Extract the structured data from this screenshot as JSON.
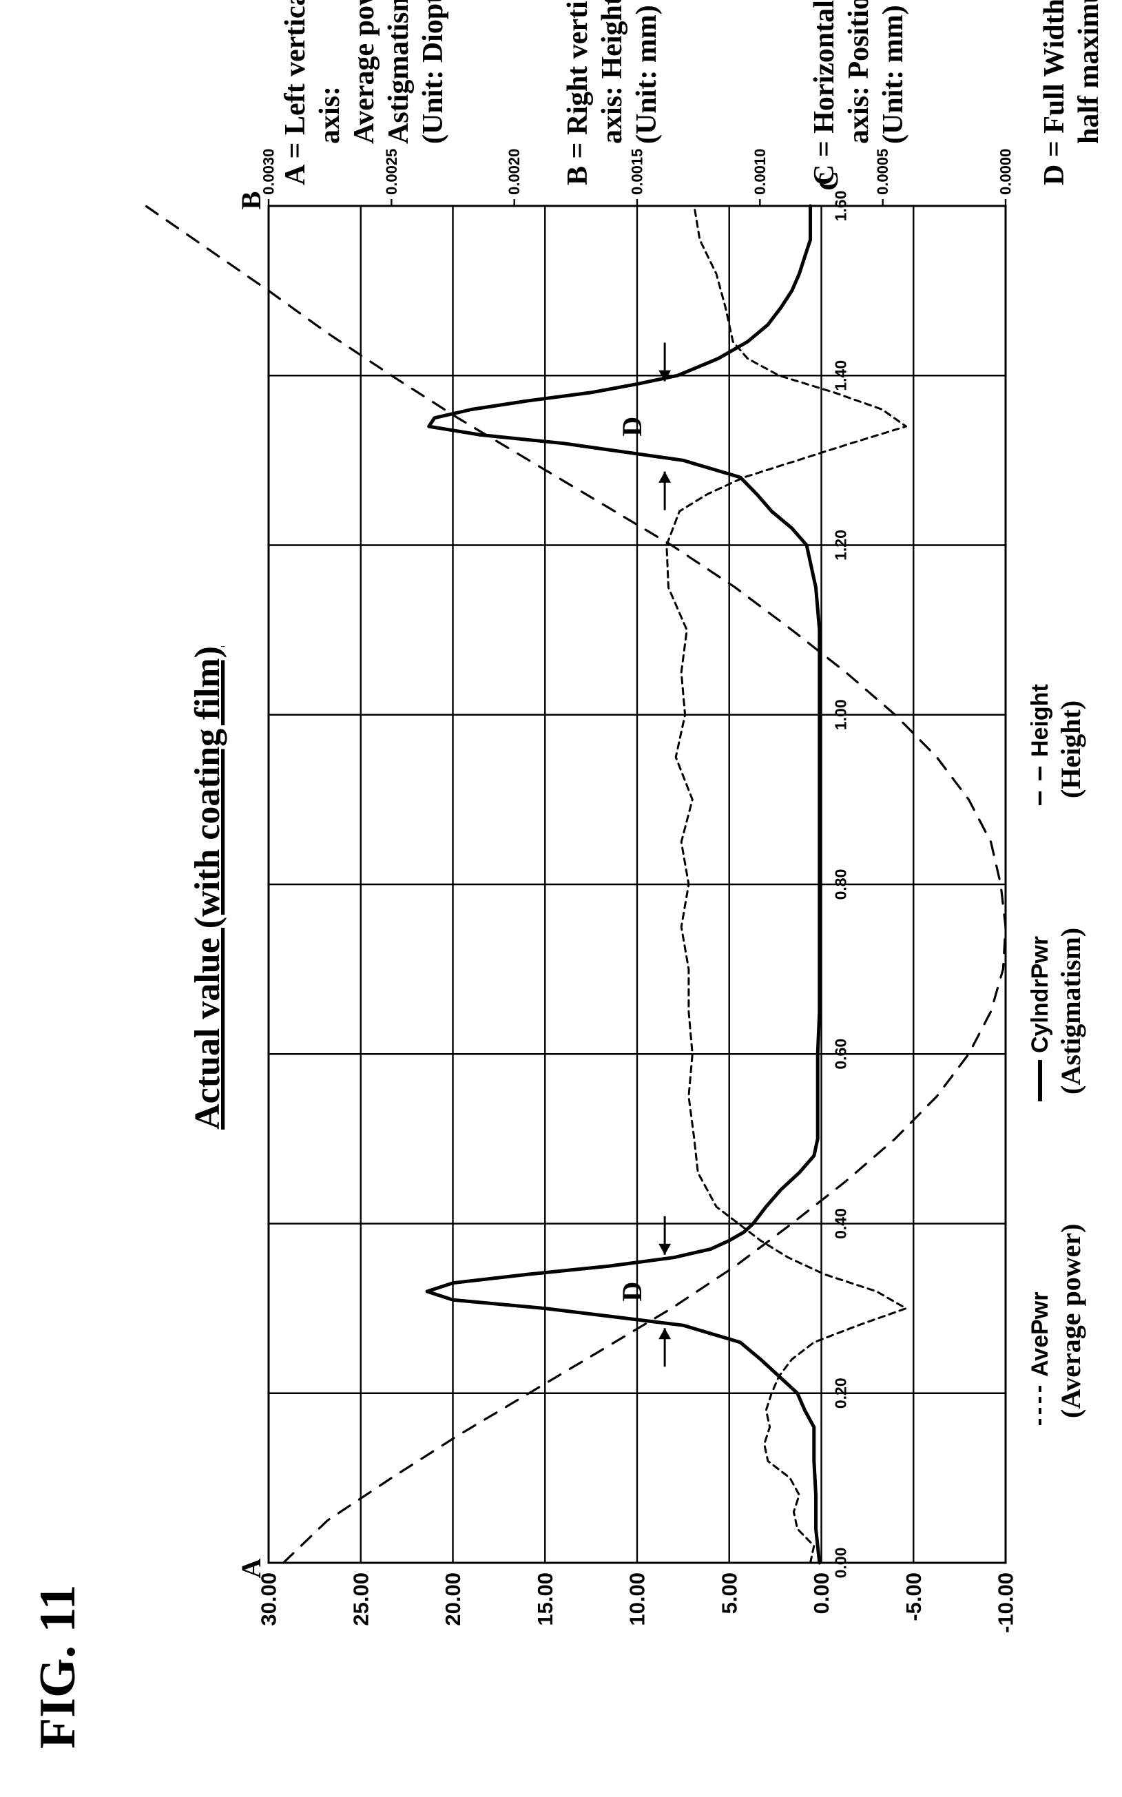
{
  "figure": {
    "label": "FIG. 11"
  },
  "chart_data": {
    "type": "line",
    "title": "Actual value (with coating film)",
    "x_axis": {
      "marker": "C",
      "range": [
        0,
        1.6
      ],
      "ticks": [
        "0.00",
        "0.20",
        "0.40",
        "0.60",
        "0.80",
        "1.00",
        "1.20",
        "1.40",
        "1.60"
      ]
    },
    "left_axis": {
      "marker": "A",
      "range": [
        -10,
        30
      ],
      "ticks": [
        "-10.00",
        "-5.00",
        "0.00",
        "5.00",
        "10.00",
        "15.00",
        "20.00",
        "25.00",
        "30.00"
      ]
    },
    "right_axis": {
      "marker": "B",
      "range": [
        0,
        0.003
      ],
      "ticks": [
        "0.0000",
        "0.0005",
        "0.0010",
        "0.0015",
        "0.0020",
        "0.0025",
        "0.0030"
      ]
    },
    "series": [
      {
        "name": "AvePwr",
        "legend_sub": "(Average power)",
        "axis": "left",
        "style": "dashed-short",
        "points": [
          [
            0.0,
            0.6
          ],
          [
            0.02,
            0.4
          ],
          [
            0.04,
            1.3
          ],
          [
            0.06,
            1.5
          ],
          [
            0.08,
            1.2
          ],
          [
            0.1,
            1.7
          ],
          [
            0.12,
            2.9
          ],
          [
            0.14,
            3.1
          ],
          [
            0.16,
            2.8
          ],
          [
            0.18,
            3.0
          ],
          [
            0.2,
            2.7
          ],
          [
            0.22,
            2.3
          ],
          [
            0.24,
            1.6
          ],
          [
            0.26,
            0.4
          ],
          [
            0.28,
            -2.0
          ],
          [
            0.3,
            -4.6
          ],
          [
            0.32,
            -3.0
          ],
          [
            0.34,
            -0.2
          ],
          [
            0.36,
            1.8
          ],
          [
            0.38,
            3.3
          ],
          [
            0.4,
            4.5
          ],
          [
            0.42,
            5.7
          ],
          [
            0.44,
            6.2
          ],
          [
            0.46,
            6.7
          ],
          [
            0.5,
            6.9
          ],
          [
            0.55,
            7.2
          ],
          [
            0.6,
            7.0
          ],
          [
            0.65,
            7.2
          ],
          [
            0.7,
            7.2
          ],
          [
            0.75,
            7.6
          ],
          [
            0.8,
            7.2
          ],
          [
            0.85,
            7.6
          ],
          [
            0.9,
            7.0
          ],
          [
            0.95,
            7.9
          ],
          [
            1.0,
            7.4
          ],
          [
            1.05,
            7.6
          ],
          [
            1.1,
            7.3
          ],
          [
            1.15,
            8.3
          ],
          [
            1.2,
            8.4
          ],
          [
            1.24,
            7.7
          ],
          [
            1.26,
            6.2
          ],
          [
            1.28,
            4.2
          ],
          [
            1.3,
            1.3
          ],
          [
            1.32,
            -1.6
          ],
          [
            1.34,
            -4.6
          ],
          [
            1.36,
            -3.3
          ],
          [
            1.38,
            -0.7
          ],
          [
            1.4,
            2.3
          ],
          [
            1.42,
            4.0
          ],
          [
            1.44,
            4.8
          ],
          [
            1.48,
            5.2
          ],
          [
            1.52,
            5.7
          ],
          [
            1.56,
            6.6
          ],
          [
            1.6,
            6.9
          ]
        ]
      },
      {
        "name": "CylndrPwr",
        "legend_sub": "(Astigmatism)",
        "axis": "left",
        "style": "solid",
        "points": [
          [
            0.0,
            0.1
          ],
          [
            0.04,
            0.3
          ],
          [
            0.08,
            0.3
          ],
          [
            0.12,
            0.4
          ],
          [
            0.16,
            0.4
          ],
          [
            0.18,
            0.9
          ],
          [
            0.2,
            1.3
          ],
          [
            0.22,
            2.3
          ],
          [
            0.24,
            3.3
          ],
          [
            0.26,
            4.4
          ],
          [
            0.28,
            7.5
          ],
          [
            0.3,
            15.0
          ],
          [
            0.31,
            20.0
          ],
          [
            0.32,
            21.4
          ],
          [
            0.33,
            20.0
          ],
          [
            0.34,
            16.0
          ],
          [
            0.35,
            11.5
          ],
          [
            0.36,
            8.0
          ],
          [
            0.37,
            6.0
          ],
          [
            0.38,
            5.0
          ],
          [
            0.39,
            4.2
          ],
          [
            0.4,
            3.7
          ],
          [
            0.42,
            3.0
          ],
          [
            0.44,
            2.2
          ],
          [
            0.46,
            1.2
          ],
          [
            0.48,
            0.4
          ],
          [
            0.5,
            0.2
          ],
          [
            0.55,
            0.2
          ],
          [
            0.6,
            0.2
          ],
          [
            0.65,
            0.1
          ],
          [
            0.7,
            0.1
          ],
          [
            0.75,
            0.1
          ],
          [
            0.8,
            0.1
          ],
          [
            0.85,
            0.1
          ],
          [
            0.9,
            0.1
          ],
          [
            0.95,
            0.1
          ],
          [
            1.0,
            0.1
          ],
          [
            1.05,
            0.1
          ],
          [
            1.1,
            0.1
          ],
          [
            1.15,
            0.3
          ],
          [
            1.2,
            0.8
          ],
          [
            1.22,
            1.6
          ],
          [
            1.24,
            2.7
          ],
          [
            1.26,
            3.5
          ],
          [
            1.28,
            4.4
          ],
          [
            1.3,
            7.5
          ],
          [
            1.32,
            14.0
          ],
          [
            1.33,
            18.5
          ],
          [
            1.34,
            21.3
          ],
          [
            1.35,
            21.0
          ],
          [
            1.36,
            19.0
          ],
          [
            1.37,
            16.0
          ],
          [
            1.38,
            12.5
          ],
          [
            1.39,
            10.0
          ],
          [
            1.4,
            7.8
          ],
          [
            1.42,
            5.6
          ],
          [
            1.44,
            4.0
          ],
          [
            1.46,
            2.9
          ],
          [
            1.48,
            2.2
          ],
          [
            1.5,
            1.6
          ],
          [
            1.52,
            1.2
          ],
          [
            1.54,
            0.9
          ],
          [
            1.56,
            0.6
          ],
          [
            1.58,
            0.6
          ],
          [
            1.6,
            0.6
          ]
        ]
      },
      {
        "name": "Height",
        "legend_sub": "(Height)",
        "axis": "right",
        "style": "dashed-long",
        "points": [
          [
            0.0,
            0.00294
          ],
          [
            0.05,
            0.00276
          ],
          [
            0.1,
            0.0025
          ],
          [
            0.15,
            0.00223
          ],
          [
            0.2,
            0.00194
          ],
          [
            0.25,
            0.00165
          ],
          [
            0.3,
            0.00136
          ],
          [
            0.35,
            0.0011
          ],
          [
            0.4,
            0.00087
          ],
          [
            0.45,
            0.00065
          ],
          [
            0.5,
            0.00045
          ],
          [
            0.55,
            0.00028
          ],
          [
            0.6,
            0.00015
          ],
          [
            0.65,
            6e-05
          ],
          [
            0.7,
            1e-05
          ],
          [
            0.75,
            0.0
          ],
          [
            0.8,
            2e-05
          ],
          [
            0.85,
            6e-05
          ],
          [
            0.9,
            0.00015
          ],
          [
            0.95,
            0.00028
          ],
          [
            1.0,
            0.00045
          ],
          [
            1.05,
            0.00065
          ],
          [
            1.1,
            0.00087
          ],
          [
            1.15,
            0.0011
          ],
          [
            1.2,
            0.00136
          ],
          [
            1.25,
            0.00165
          ],
          [
            1.3,
            0.00194
          ],
          [
            1.35,
            0.00223
          ],
          [
            1.4,
            0.0025
          ],
          [
            1.45,
            0.00276
          ],
          [
            1.5,
            0.003
          ],
          [
            1.55,
            0.00325
          ],
          [
            1.6,
            0.0035
          ]
        ]
      }
    ],
    "annotations": [
      {
        "label": "D",
        "x_from": 0.28,
        "x_to": 0.36,
        "y": 8.5
      },
      {
        "label": "D",
        "x_from": 1.29,
        "x_to": 1.39,
        "y": 8.5
      }
    ],
    "legend": [
      {
        "key": "AvePwr",
        "line": "AvePwr",
        "sub": "(Average power)"
      },
      {
        "key": "CylndrPwr",
        "line": "CylndrPwr",
        "sub": "(Astigmatism)"
      },
      {
        "key": "Height",
        "line": "Height",
        "sub": "(Height)"
      }
    ],
    "key_notes": [
      {
        "letter": "A",
        "lines": [
          "A = Left vertical",
          "axis:",
          "Average power,",
          "Astigmatism",
          "(Unit: Diopters)"
        ]
      },
      {
        "letter": "B",
        "lines": [
          "B = Right vertical",
          "axis:  Height",
          "(Unit: mm)"
        ]
      },
      {
        "letter": "C",
        "lines": [
          "C = Horizontal",
          "axis:  Position",
          "(Unit: mm)"
        ]
      },
      {
        "letter": "D",
        "lines": [
          "D = Full Width at",
          "half maximum"
        ]
      }
    ]
  }
}
